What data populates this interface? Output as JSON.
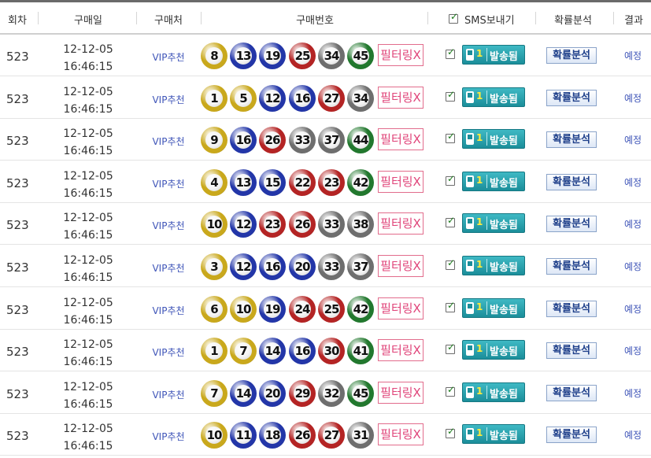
{
  "header": {
    "round": "회차",
    "date": "구매일",
    "shop": "구매처",
    "numbers": "구매번호",
    "sms": "SMS보내기",
    "analysis": "확률분석",
    "result": "결과",
    "sms_checked": true
  },
  "row_labels": {
    "filter": "필터링X",
    "sms_count": "1",
    "sms_status": "발송됨",
    "analysis_btn": "확률분석"
  },
  "ball_colors": {
    "yellow": "#c9a81c",
    "blue": "#2336a8",
    "red": "#b42424",
    "gray": "#6e6e6e",
    "green": "#22782e"
  },
  "rows": [
    {
      "round": "523",
      "date": "12-12-05",
      "time": "16:46:15",
      "shop": "VIP추천",
      "numbers": [
        8,
        13,
        19,
        25,
        34,
        45
      ],
      "result": "예정",
      "checked": true
    },
    {
      "round": "523",
      "date": "12-12-05",
      "time": "16:46:15",
      "shop": "VIP추천",
      "numbers": [
        1,
        5,
        12,
        16,
        27,
        34
      ],
      "result": "예정",
      "checked": true
    },
    {
      "round": "523",
      "date": "12-12-05",
      "time": "16:46:15",
      "shop": "VIP추천",
      "numbers": [
        9,
        16,
        26,
        33,
        37,
        44
      ],
      "result": "예정",
      "checked": true
    },
    {
      "round": "523",
      "date": "12-12-05",
      "time": "16:46:15",
      "shop": "VIP추천",
      "numbers": [
        4,
        13,
        15,
        22,
        23,
        42
      ],
      "result": "예정",
      "checked": true
    },
    {
      "round": "523",
      "date": "12-12-05",
      "time": "16:46:15",
      "shop": "VIP추천",
      "numbers": [
        10,
        12,
        23,
        26,
        33,
        38
      ],
      "result": "예정",
      "checked": true
    },
    {
      "round": "523",
      "date": "12-12-05",
      "time": "16:46:15",
      "shop": "VIP추천",
      "numbers": [
        3,
        12,
        16,
        20,
        33,
        37
      ],
      "result": "예정",
      "checked": true
    },
    {
      "round": "523",
      "date": "12-12-05",
      "time": "16:46:15",
      "shop": "VIP추천",
      "numbers": [
        6,
        10,
        19,
        24,
        25,
        42
      ],
      "result": "예정",
      "checked": true
    },
    {
      "round": "523",
      "date": "12-12-05",
      "time": "16:46:15",
      "shop": "VIP추천",
      "numbers": [
        1,
        7,
        14,
        16,
        30,
        41
      ],
      "result": "예정",
      "checked": true
    },
    {
      "round": "523",
      "date": "12-12-05",
      "time": "16:46:15",
      "shop": "VIP추천",
      "numbers": [
        7,
        14,
        20,
        29,
        32,
        45
      ],
      "result": "예정",
      "checked": true
    },
    {
      "round": "523",
      "date": "12-12-05",
      "time": "16:46:15",
      "shop": "VIP추천",
      "numbers": [
        10,
        11,
        18,
        26,
        27,
        31
      ],
      "result": "예정",
      "checked": true
    }
  ]
}
